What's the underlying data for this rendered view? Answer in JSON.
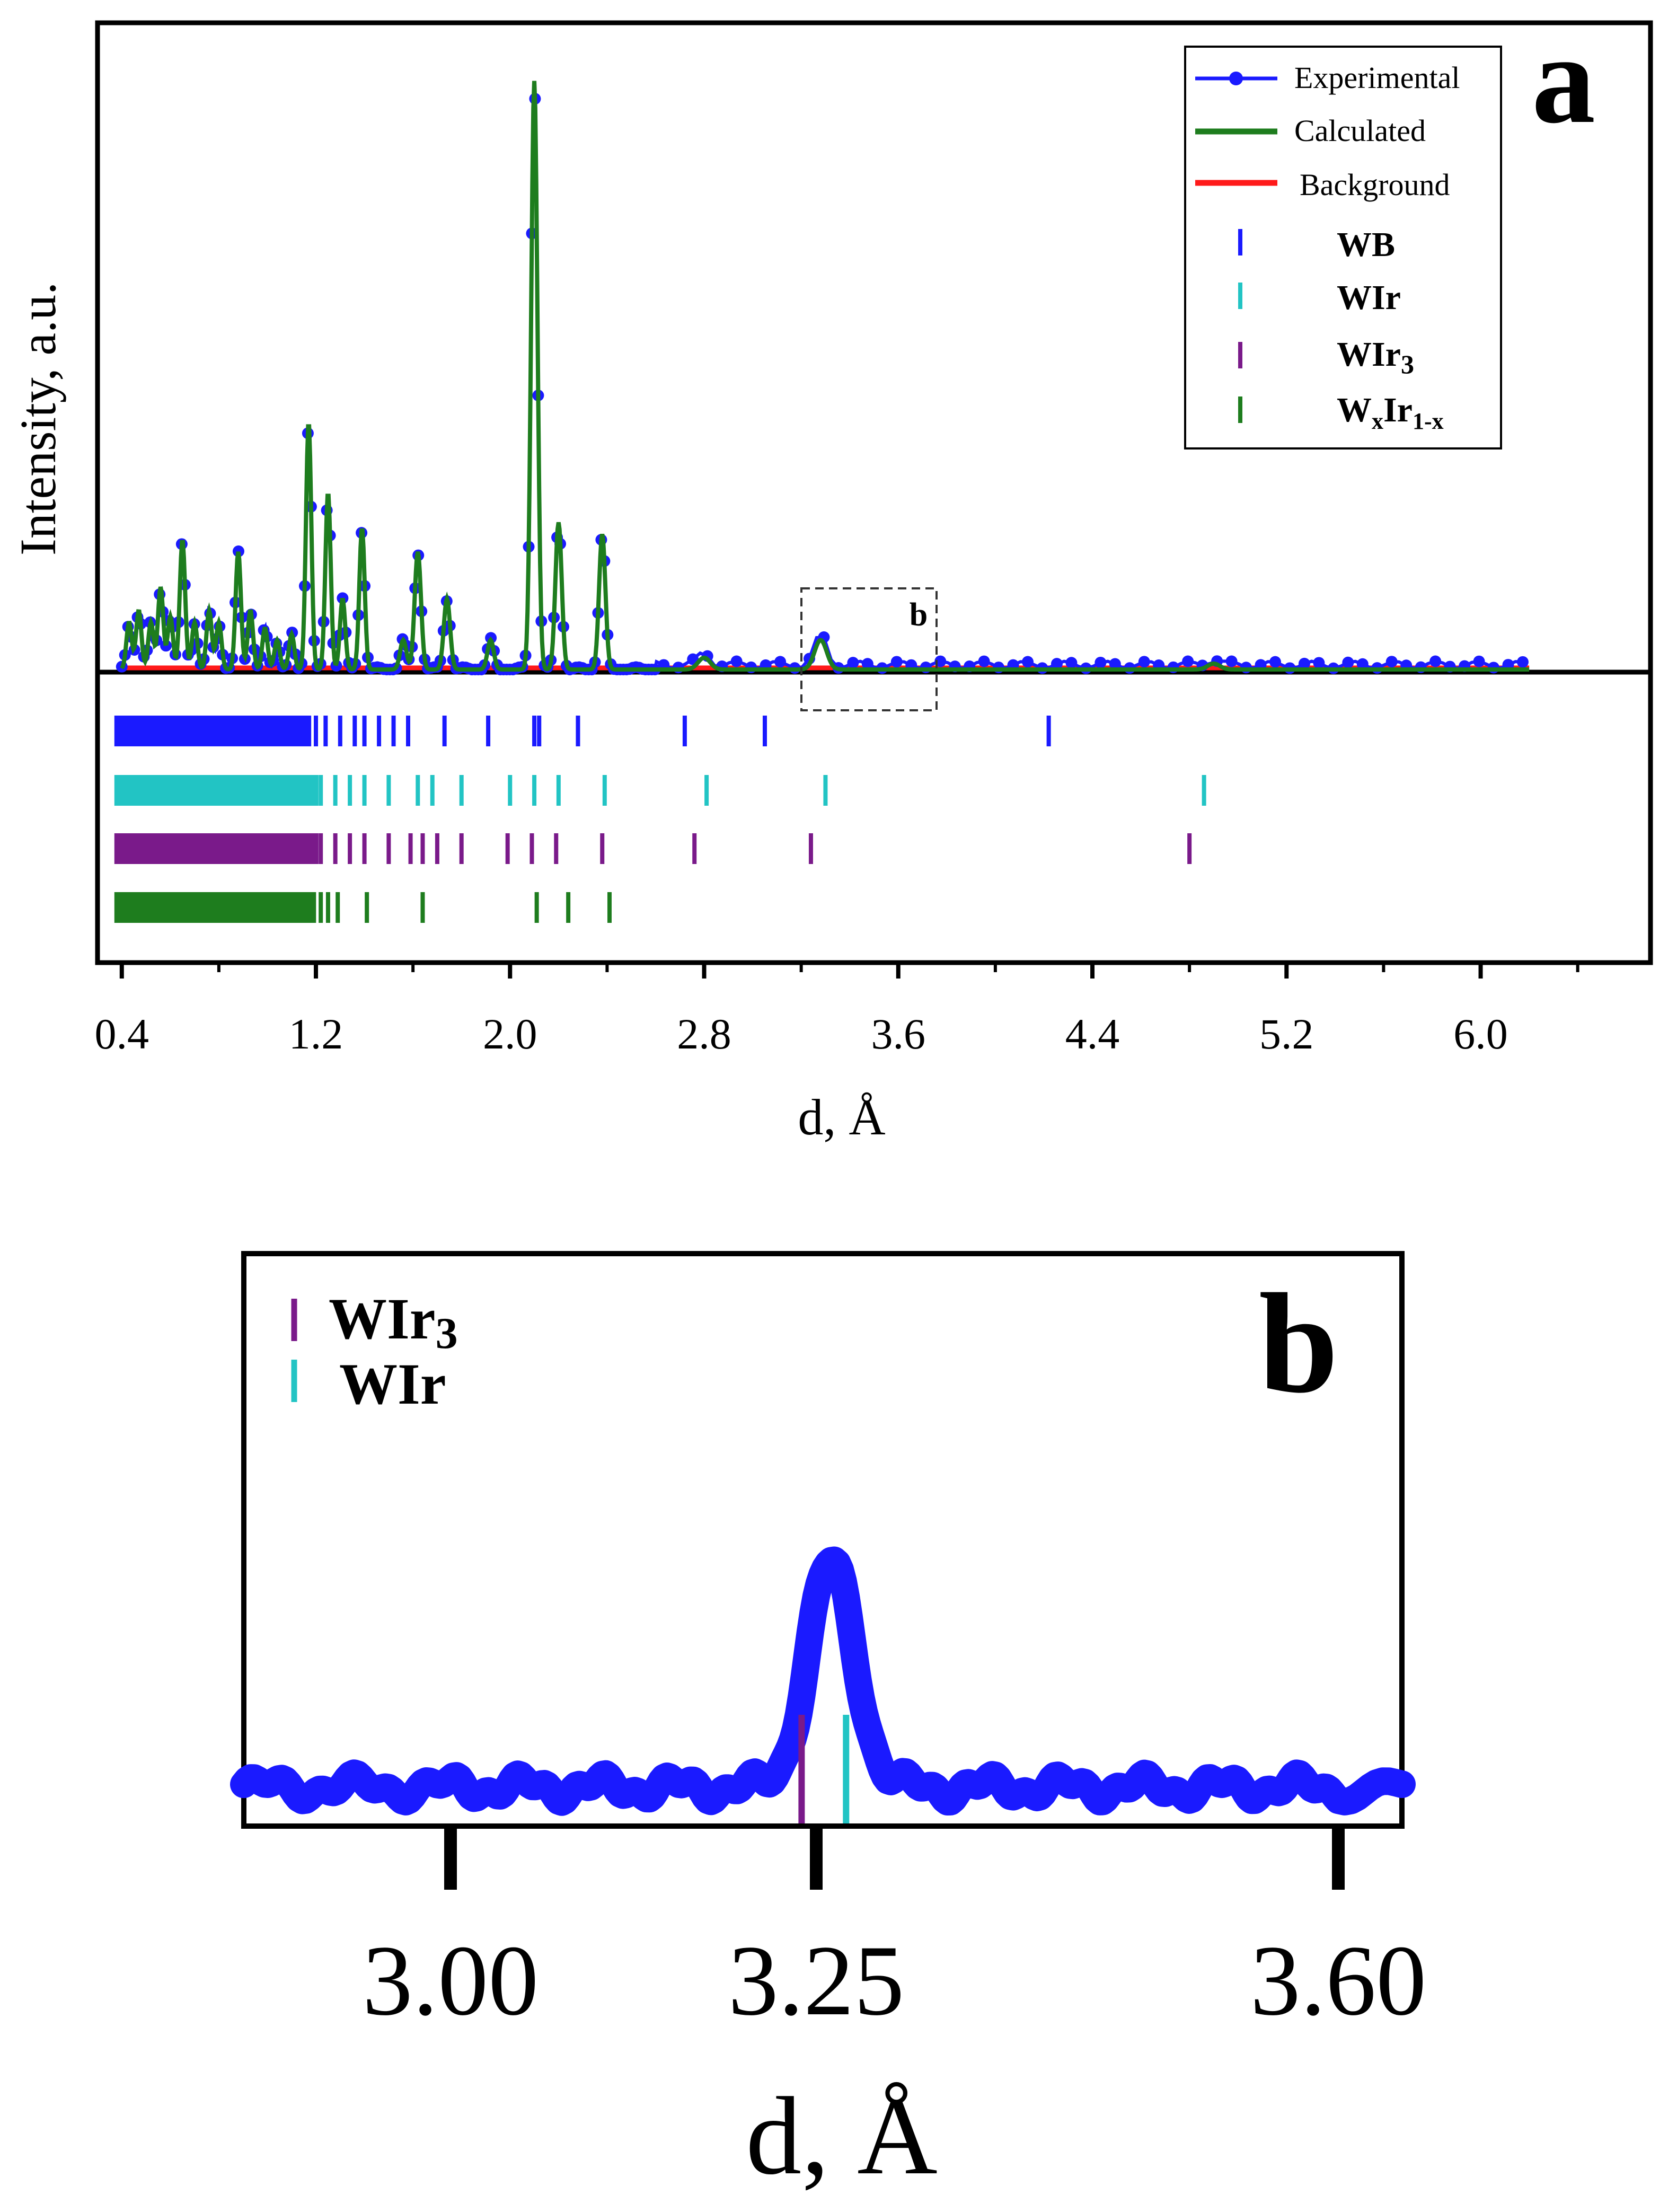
{
  "panel_a": {
    "label": "a",
    "ylabel": "Intensity, a.u.",
    "xlabel": "d, Å",
    "inset_label": "b",
    "legend": {
      "experimental": "Experimental",
      "calculated": "Calculated",
      "background": "Background",
      "wb": "WB",
      "wir": "WIr",
      "wir3_base": "WIr",
      "wir3_sub": "3",
      "wxir_w": "W",
      "wxir_x": "x",
      "wxir_ir": "Ir",
      "wxir_sub": "1-x"
    }
  },
  "panel_b": {
    "label": "b",
    "xlabel": "d, Å",
    "legend": {
      "wir3_base": "WIr",
      "wir3_sub": "3",
      "wir": "WIr"
    }
  },
  "chart_data": [
    {
      "type": "line",
      "panel": "a",
      "xlabel": "d, Å",
      "ylabel": "Intensity, a.u.",
      "xlim": [
        0.3,
        6.7
      ],
      "ylim": [
        0,
        1.08
      ],
      "x_ticks": [
        "0.4",
        "1.2",
        "2.0",
        "2.8",
        "3.6",
        "4.4",
        "5.2",
        "6.0"
      ],
      "x_tick_values": [
        0.4,
        1.2,
        2.0,
        2.8,
        3.6,
        4.4,
        5.2,
        6.0
      ],
      "legend_position": "top-right",
      "colors": {
        "experimental": "#1a1aff",
        "calculated": "#1e7d1e",
        "background": "#ff1a1a",
        "wb": "#1a1aff",
        "wir": "#22c4c4",
        "wir3": "#7a1a8a",
        "wxir": "#1e7d1e"
      },
      "peaks": [
        {
          "d": 0.43,
          "h": 0.08
        },
        {
          "d": 0.47,
          "h": 0.1
        },
        {
          "d": 0.52,
          "h": 0.08
        },
        {
          "d": 0.56,
          "h": 0.14
        },
        {
          "d": 0.6,
          "h": 0.09
        },
        {
          "d": 0.65,
          "h": 0.22
        },
        {
          "d": 0.7,
          "h": 0.08
        },
        {
          "d": 0.76,
          "h": 0.1
        },
        {
          "d": 0.8,
          "h": 0.08
        },
        {
          "d": 0.88,
          "h": 0.2
        },
        {
          "d": 0.93,
          "h": 0.1
        },
        {
          "d": 0.99,
          "h": 0.07
        },
        {
          "d": 1.04,
          "h": 0.05
        },
        {
          "d": 1.1,
          "h": 0.06
        },
        {
          "d": 1.17,
          "h": 0.42
        },
        {
          "d": 1.25,
          "h": 0.3
        },
        {
          "d": 1.31,
          "h": 0.12
        },
        {
          "d": 1.39,
          "h": 0.24
        },
        {
          "d": 1.56,
          "h": 0.05
        },
        {
          "d": 1.62,
          "h": 0.2
        },
        {
          "d": 1.74,
          "h": 0.12
        },
        {
          "d": 1.92,
          "h": 0.05
        },
        {
          "d": 2.1,
          "h": 1.0
        },
        {
          "d": 2.2,
          "h": 0.25
        },
        {
          "d": 2.38,
          "h": 0.23
        },
        {
          "d": 2.8,
          "h": 0.02
        },
        {
          "d": 3.28,
          "h": 0.05
        },
        {
          "d": 4.9,
          "h": 0.01
        }
      ],
      "reflections": {
        "WB": [
          0.4,
          0.42,
          0.44,
          0.46,
          0.48,
          0.5,
          0.52,
          0.54,
          0.56,
          0.58,
          0.6,
          0.62,
          0.64,
          0.66,
          0.68,
          0.7,
          0.72,
          0.74,
          0.76,
          0.78,
          0.82,
          0.85,
          0.88,
          0.92,
          0.97,
          1.02,
          1.06,
          1.1,
          1.15,
          1.2,
          1.24,
          1.3,
          1.36,
          1.4,
          1.46,
          1.52,
          1.58,
          1.73,
          1.91,
          2.1,
          2.12,
          2.28,
          2.72,
          3.05,
          4.22
        ],
        "WIr": [
          0.4,
          0.43,
          0.46,
          0.49,
          0.52,
          0.55,
          0.58,
          0.61,
          0.64,
          0.67,
          0.7,
          0.73,
          0.76,
          0.79,
          0.82,
          0.86,
          0.9,
          0.94,
          0.98,
          1.03,
          1.08,
          1.13,
          1.18,
          1.22,
          1.28,
          1.34,
          1.4,
          1.5,
          1.62,
          1.68,
          1.8,
          2.0,
          2.1,
          2.2,
          2.39,
          2.81,
          3.3,
          4.86
        ],
        "WIr₃": [
          0.4,
          0.43,
          0.46,
          0.49,
          0.52,
          0.55,
          0.58,
          0.61,
          0.64,
          0.67,
          0.7,
          0.73,
          0.76,
          0.8,
          0.84,
          0.88,
          0.93,
          0.98,
          1.03,
          1.08,
          1.13,
          1.18,
          1.22,
          1.28,
          1.34,
          1.4,
          1.5,
          1.59,
          1.64,
          1.7,
          1.8,
          1.99,
          2.09,
          2.19,
          2.38,
          2.76,
          3.24,
          4.8
        ],
        "WₓIr₁₋ₓ": [
          0.4,
          0.43,
          0.46,
          0.49,
          0.52,
          0.55,
          0.58,
          0.61,
          0.64,
          0.67,
          0.7,
          0.73,
          0.76,
          0.79,
          0.83,
          0.87,
          0.9,
          0.94,
          1.0,
          1.05,
          1.1,
          1.13,
          1.17,
          1.22,
          1.25,
          1.29,
          1.41,
          1.64,
          2.11,
          2.24,
          2.41
        ]
      }
    },
    {
      "type": "line",
      "panel": "b",
      "xlabel": "d, Å",
      "xlim": [
        2.88,
        3.62
      ],
      "x_ticks": [
        "3.00",
        "3.25",
        "3.60"
      ],
      "x_tick_values": [
        3.0,
        3.25,
        3.6
      ],
      "legend_position": "top-left",
      "experimental_peak": {
        "d": 3.26,
        "h": 1.0
      },
      "reflections": {
        "WIr₃": [
          3.24
        ],
        "WIr": [
          3.26
        ]
      }
    }
  ]
}
